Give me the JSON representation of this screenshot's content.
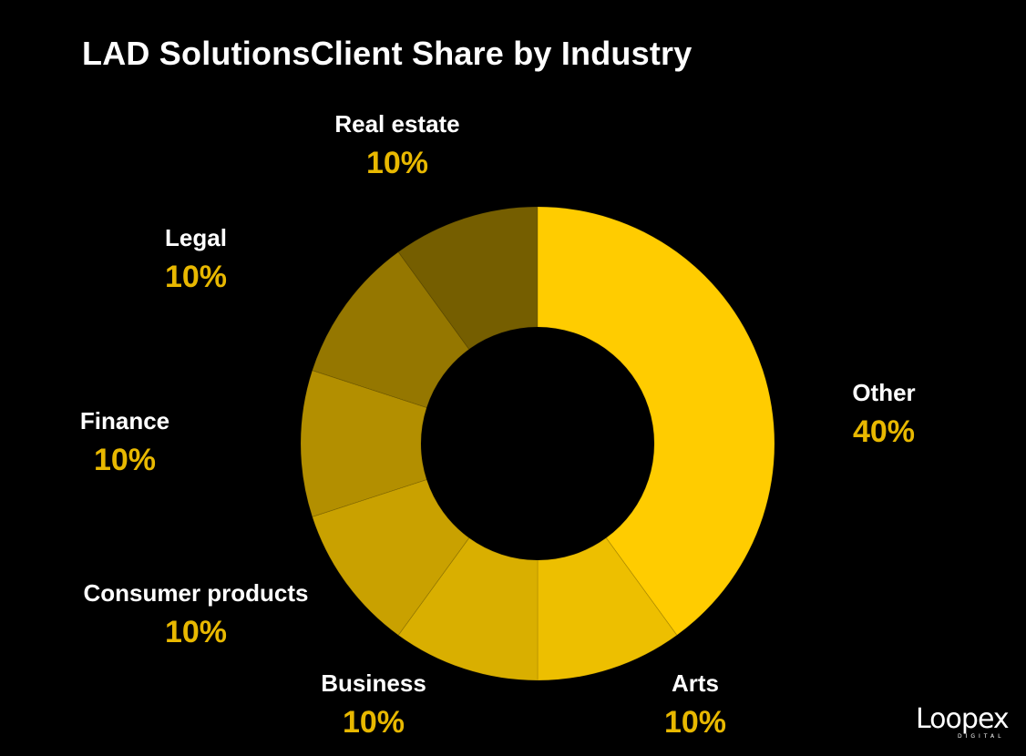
{
  "chart_data": {
    "type": "pie",
    "style": "donut",
    "title": "LAD SolutionsClient Share by Industry",
    "start": "top, clockwise",
    "slices": [
      {
        "label": "Other",
        "value": 40,
        "display": "40%",
        "color": "#FFCC00"
      },
      {
        "label": "Arts",
        "value": 10,
        "display": "10%",
        "color": "#EDBF00"
      },
      {
        "label": "Business",
        "value": 10,
        "display": "10%",
        "color": "#D9AF00"
      },
      {
        "label": "Consumer products",
        "value": 10,
        "display": "10%",
        "color": "#C9A100"
      },
      {
        "label": "Finance",
        "value": 10,
        "display": "10%",
        "color": "#B38F00"
      },
      {
        "label": "Legal",
        "value": 10,
        "display": "10%",
        "color": "#957700"
      },
      {
        "label": "Real estate",
        "value": 10,
        "display": "10%",
        "color": "#755E00"
      }
    ],
    "label_color": "#FFFFFF",
    "value_color": "#E8B800",
    "background": "#000000"
  },
  "branding": {
    "logo_text": "Loopex",
    "logo_subtext": "DIGITAL"
  }
}
